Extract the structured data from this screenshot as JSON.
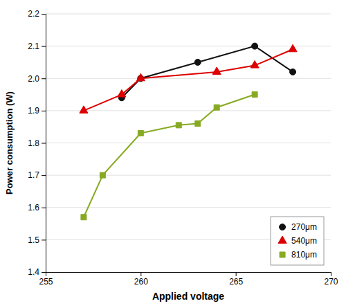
{
  "chart_data": {
    "type": "line",
    "xlabel": "Applied voltage",
    "ylabel": "Power consumption (W)",
    "series": [
      {
        "name": "270μm",
        "color": "#111111",
        "marker": "circle",
        "x": [
          259,
          260,
          263,
          266,
          268
        ],
        "values": [
          1.94,
          2.0,
          2.05,
          2.1,
          2.02
        ]
      },
      {
        "name": "540μm",
        "color": "#dd0000",
        "marker": "triangle",
        "x": [
          257,
          259,
          260,
          264,
          266,
          268
        ],
        "values": [
          1.9,
          1.95,
          2.0,
          2.02,
          2.04,
          2.09
        ]
      },
      {
        "name": "810μm",
        "color": "#88aa22",
        "marker": "square",
        "x": [
          257,
          258,
          260,
          262,
          263,
          264,
          266
        ],
        "values": [
          1.57,
          1.7,
          1.83,
          1.855,
          1.86,
          1.91,
          1.95
        ]
      }
    ],
    "xlim": [
      255,
      270
    ],
    "ylim": [
      1.4,
      2.2
    ],
    "xticks": [
      255,
      260,
      265,
      270
    ],
    "yticks": [
      1.4,
      1.5,
      1.6,
      1.7,
      1.8,
      1.9,
      {
        "value": 2.0,
        "label": "2.0"
      },
      2.1,
      2.2
    ],
    "grid": "y",
    "legend": "lower right"
  }
}
